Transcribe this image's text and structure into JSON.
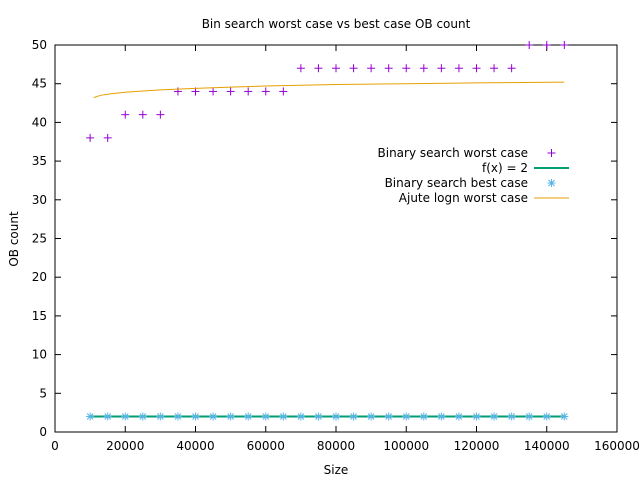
{
  "chart_data": {
    "type": "scatter",
    "title": "Bin search worst case vs best case OB count",
    "xlabel": "Size",
    "ylabel": "OB count",
    "xlim": [
      0,
      160000
    ],
    "ylim": [
      0,
      50
    ],
    "xticks": [
      0,
      20000,
      40000,
      60000,
      80000,
      100000,
      120000,
      140000,
      160000
    ],
    "yticks": [
      0,
      5,
      10,
      15,
      20,
      25,
      30,
      35,
      40,
      45,
      50
    ],
    "grid": false,
    "legend_position": "right-middle",
    "series": [
      {
        "name": "Binary search worst case",
        "kind": "points",
        "marker": "plus",
        "color": "#9400d3",
        "x": [
          10000,
          15000,
          20000,
          25000,
          30000,
          35000,
          40000,
          45000,
          50000,
          55000,
          60000,
          65000,
          70000,
          75000,
          80000,
          85000,
          90000,
          95000,
          100000,
          105000,
          110000,
          115000,
          120000,
          125000,
          130000,
          135000,
          140000,
          145000
        ],
        "y": [
          38,
          38,
          41,
          41,
          41,
          44,
          44,
          44,
          44,
          44,
          44,
          44,
          47,
          47,
          47,
          47,
          47,
          47,
          47,
          47,
          47,
          47,
          47,
          47,
          47,
          50,
          50,
          50
        ]
      },
      {
        "name": "f(x) = 2",
        "kind": "line",
        "color": "#009e73",
        "x": [
          10000,
          145000
        ],
        "y": [
          2,
          2
        ]
      },
      {
        "name": "Binary search best case",
        "kind": "points",
        "marker": "star",
        "color": "#56b4e9",
        "x": [
          10000,
          15000,
          20000,
          25000,
          30000,
          35000,
          40000,
          45000,
          50000,
          55000,
          60000,
          65000,
          70000,
          75000,
          80000,
          85000,
          90000,
          95000,
          100000,
          105000,
          110000,
          115000,
          120000,
          125000,
          130000,
          135000,
          140000,
          145000
        ],
        "y": [
          2,
          2,
          2,
          2,
          2,
          2,
          2,
          2,
          2,
          2,
          2,
          2,
          2,
          2,
          2,
          2,
          2,
          2,
          2,
          2,
          2,
          2,
          2,
          2,
          2,
          2,
          2,
          2
        ]
      },
      {
        "name": "Ajute logn worst case",
        "kind": "line",
        "color": "#e69f00",
        "x": [
          11000,
          13000,
          16000,
          20000,
          25000,
          30000,
          40000,
          50000,
          60000,
          70000,
          80000,
          100000,
          120000,
          145000
        ],
        "y": [
          43.2,
          43.5,
          43.7,
          43.9,
          44.05,
          44.2,
          44.4,
          44.55,
          44.7,
          44.8,
          44.9,
          45.0,
          45.1,
          45.2
        ]
      }
    ]
  }
}
